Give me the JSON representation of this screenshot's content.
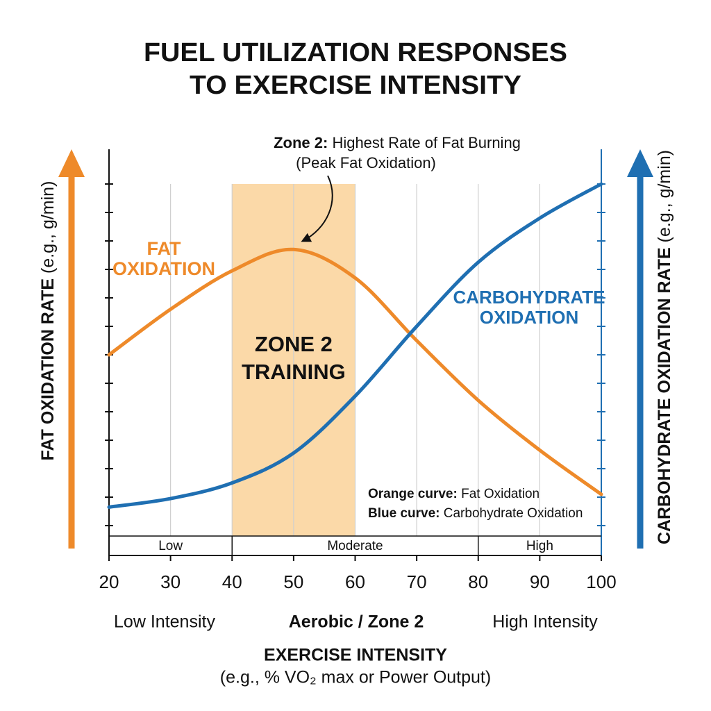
{
  "chart_data": {
    "type": "line",
    "title": [
      "FUEL UTILIZATION RESPONSES",
      "TO EXERCISE INTENSITY"
    ],
    "ylabel": {
      "bold": "FAT OXIDATION RATE",
      "note": "(e.g., g/min)"
    },
    "y2label": {
      "bold": "CARBOHYDRATE OXIDATION RATE",
      "note": "(e.g., g/min)"
    },
    "xlabel": "EXERCISE INTENSITY",
    "xlabel_note": "(e.g., % VO₂ max or Power Output)",
    "x": [
      20,
      30,
      40,
      50,
      60,
      70,
      80,
      90,
      100
    ],
    "xlim": [
      20,
      100
    ],
    "xticks": [
      20,
      30,
      40,
      50,
      60,
      70,
      80,
      90,
      100
    ],
    "ylim": [
      0,
      14
    ],
    "yticks": [
      1,
      2,
      3,
      4,
      5,
      6,
      7,
      8,
      9,
      10,
      11,
      12,
      13
    ],
    "y2lim": [
      0,
      14
    ],
    "y2ticks": [
      1,
      2,
      3,
      4,
      5,
      6,
      7,
      8,
      9,
      10,
      11,
      12,
      13
    ],
    "grid": true,
    "series": [
      {
        "name": "FAT OXIDATION",
        "label_lines": [
          "FAT",
          "OXIDATION"
        ],
        "color": "#ee8a2a",
        "values": [
          7.0,
          8.6,
          9.95,
          10.7,
          9.7,
          7.5,
          5.4,
          3.65,
          2.1
        ]
      },
      {
        "name": "CARBOHYDRATE OXIDATION",
        "label_lines": [
          "CARBOHYDRATE",
          "OXIDATION"
        ],
        "color": "#1f6fb2",
        "axis": "y2",
        "values": [
          1.65,
          1.95,
          2.5,
          3.55,
          5.55,
          8.0,
          10.25,
          11.8,
          13.0
        ]
      }
    ],
    "shade": {
      "range": [
        40,
        60
      ],
      "label_lines": [
        "ZONE 2",
        "TRAINING"
      ],
      "color": "#fbd9a8"
    },
    "annotation": {
      "bold": "Zone 2:",
      "text": "Highest Rate of Fat Burning",
      "line2": "(Peak Fat Oxidation)"
    },
    "bands": [
      {
        "label": "Low",
        "from": 20,
        "to": 40
      },
      {
        "label": "Moderate",
        "from": 40,
        "to": 80
      },
      {
        "label": "High",
        "from": 80,
        "to": 100
      }
    ],
    "intensity_notes": [
      "Low Intensity",
      "Aerobic / Zone 2",
      "High Intensity"
    ],
    "notes": [
      {
        "bold": "Orange curve:",
        "text": "Fat Oxidation"
      },
      {
        "bold": "Blue curve:",
        "text": "Carbohydrate Oxidation"
      }
    ]
  }
}
